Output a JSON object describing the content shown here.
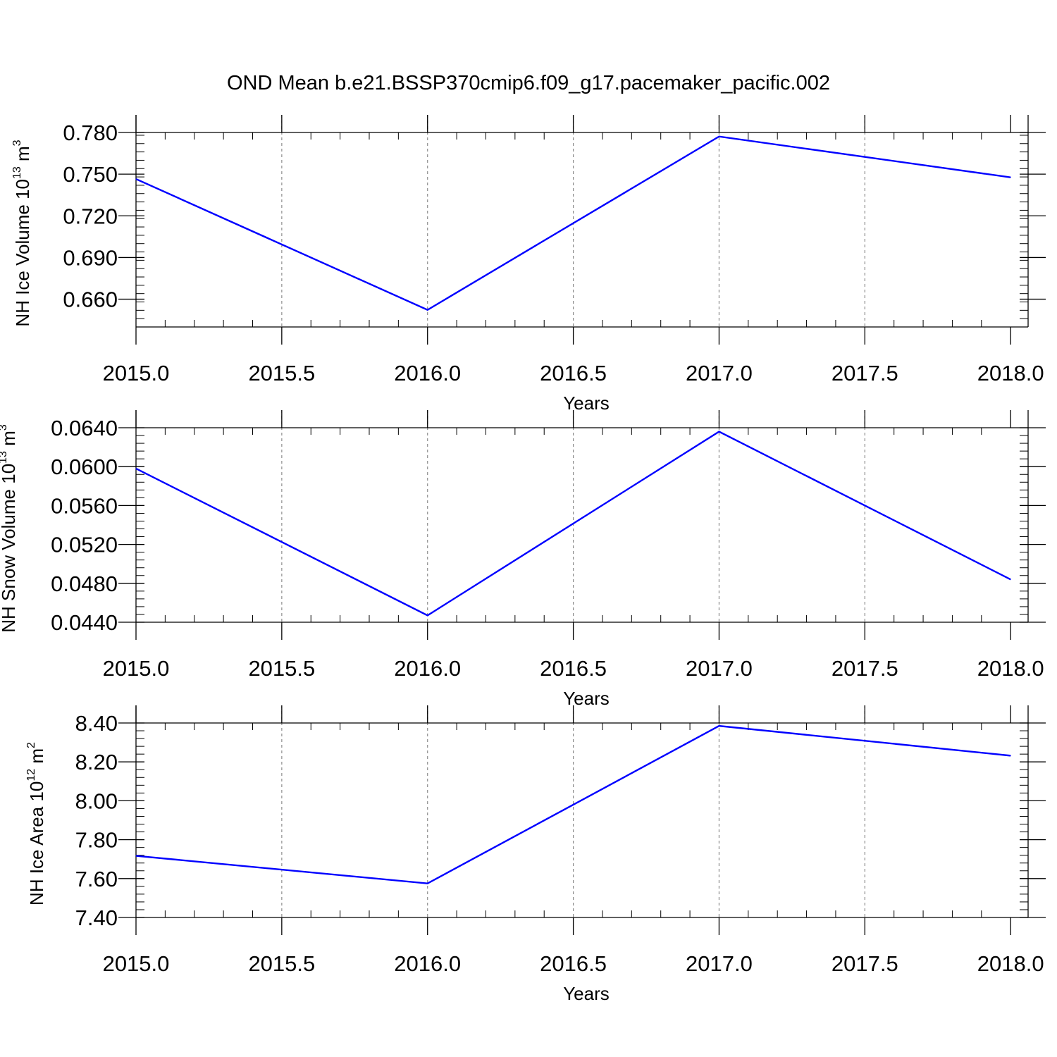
{
  "title": "OND Mean b.e21.BSSP370cmip6.f09_g17.pacemaker_pacific.002",
  "line_color": "#0000ff",
  "chart_data": [
    {
      "type": "line",
      "ylabel": "NH Ice Volume 10",
      "ylabel_exp": "13",
      "ylabel_unit": " m",
      "ylabel_unit_exp": "3",
      "xlabel": "Years",
      "x": [
        2015,
        2016,
        2017,
        2018
      ],
      "values": [
        0.7465,
        0.6523,
        0.7771,
        0.7477
      ],
      "xlim": [
        2015.0,
        2018.06
      ],
      "ylim": [
        0.64,
        0.78
      ],
      "xticks": [
        "2015.0",
        "2015.5",
        "2016.0",
        "2016.5",
        "2017.0",
        "2017.5",
        "2018.0"
      ],
      "xtick_values": [
        2015.0,
        2015.5,
        2016.0,
        2016.5,
        2017.0,
        2017.5,
        2018.0
      ],
      "yticks": [
        "0.660",
        "0.690",
        "0.720",
        "0.750",
        "0.780"
      ],
      "ytick_values": [
        0.66,
        0.69,
        0.72,
        0.75,
        0.78
      ],
      "yminor_step": 0.006,
      "grid": "x-dashed"
    },
    {
      "type": "line",
      "ylabel": "NH Snow Volume 10",
      "ylabel_exp": "13",
      "ylabel_unit": " m",
      "ylabel_unit_exp": "3",
      "xlabel": "Years",
      "x": [
        2015,
        2016,
        2017,
        2018
      ],
      "values": [
        0.0598,
        0.0447,
        0.0636,
        0.0484
      ],
      "xlim": [
        2015.0,
        2018.06
      ],
      "ylim": [
        0.044,
        0.064
      ],
      "xticks": [
        "2015.0",
        "2015.5",
        "2016.0",
        "2016.5",
        "2017.0",
        "2017.5",
        "2018.0"
      ],
      "xtick_values": [
        2015.0,
        2015.5,
        2016.0,
        2016.5,
        2017.0,
        2017.5,
        2018.0
      ],
      "yticks": [
        "0.0440",
        "0.0480",
        "0.0520",
        "0.0560",
        "0.0600",
        "0.0640"
      ],
      "ytick_values": [
        0.044,
        0.048,
        0.052,
        0.056,
        0.06,
        0.064
      ],
      "yminor_step": 0.0008,
      "grid": "x-dashed"
    },
    {
      "type": "line",
      "ylabel": "NH Ice Area 10",
      "ylabel_exp": "12",
      "ylabel_unit": " m",
      "ylabel_unit_exp": "2",
      "xlabel": "Years",
      "x": [
        2015,
        2016,
        2017,
        2018
      ],
      "values": [
        7.717,
        7.575,
        8.385,
        8.232
      ],
      "xlim": [
        2015.0,
        2018.06
      ],
      "ylim": [
        7.4,
        8.4
      ],
      "xticks": [
        "2015.0",
        "2015.5",
        "2016.0",
        "2016.5",
        "2017.0",
        "2017.5",
        "2018.0"
      ],
      "xtick_values": [
        2015.0,
        2015.5,
        2016.0,
        2016.5,
        2017.0,
        2017.5,
        2018.0
      ],
      "yticks": [
        "7.40",
        "7.60",
        "7.80",
        "8.00",
        "8.20",
        "8.40"
      ],
      "ytick_values": [
        7.4,
        7.6,
        7.8,
        8.0,
        8.2,
        8.4
      ],
      "yminor_step": 0.04,
      "grid": "x-dashed"
    }
  ]
}
